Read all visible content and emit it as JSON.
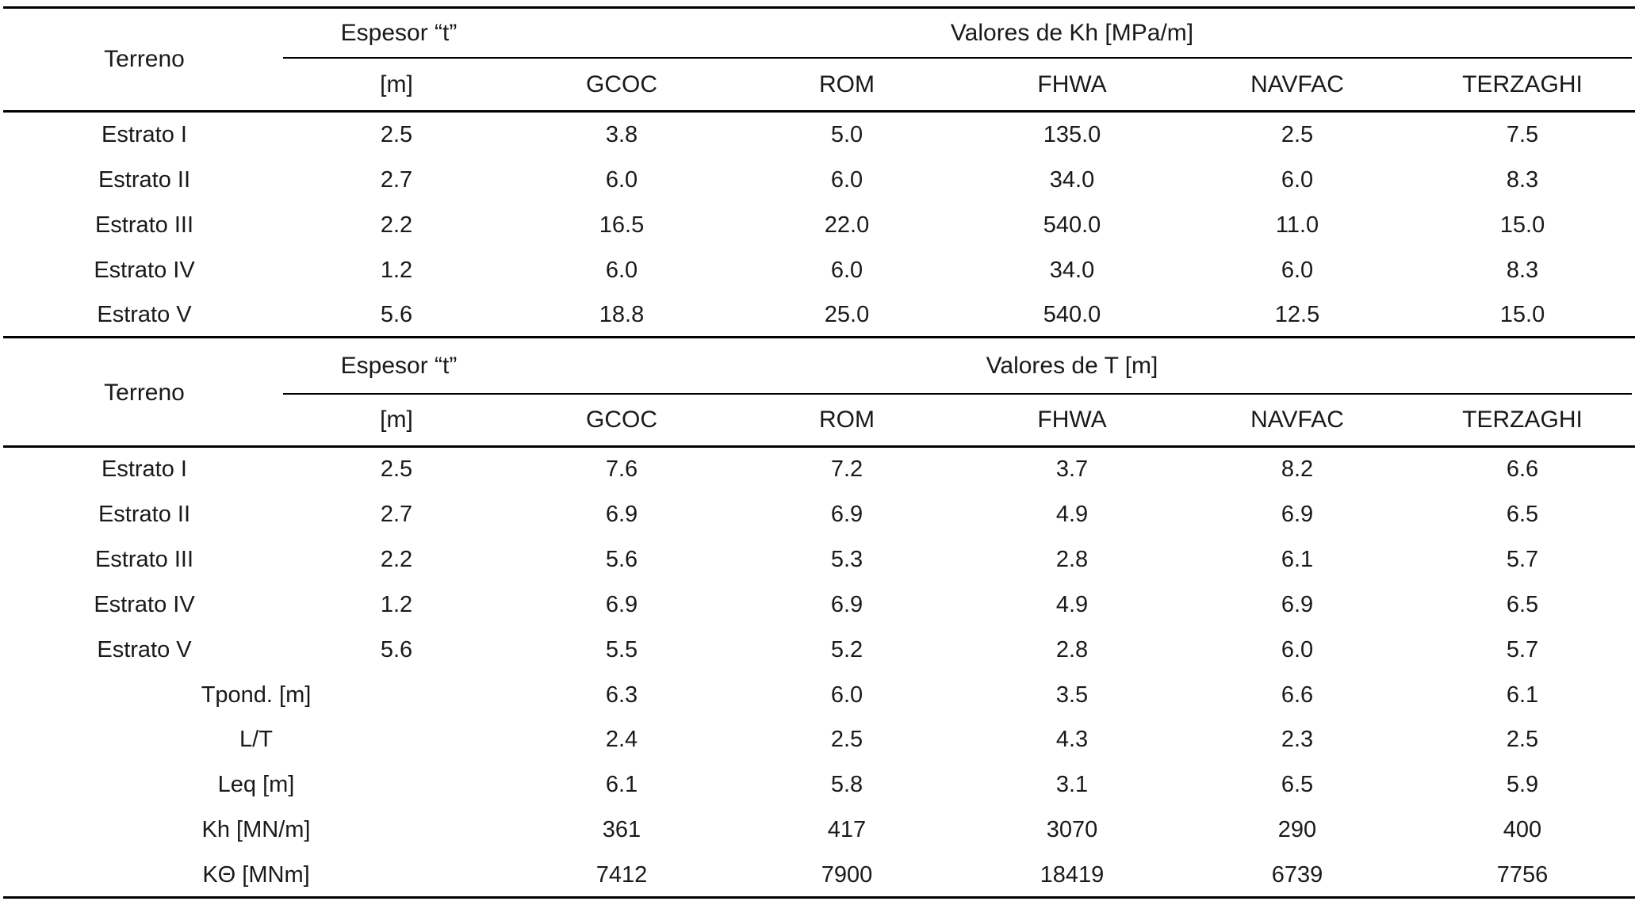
{
  "tables": [
    {
      "terrain_label": "Terreno",
      "thickness_label": "Espesor “t”",
      "thickness_unit": "[m]",
      "group_label": "Valores de Kh [MPa/m]",
      "methods": [
        "GCOC",
        "ROM",
        "FHWA",
        "NAVFAC",
        "TERZAGHI"
      ],
      "rows": [
        {
          "label": "Estrato I",
          "t": "2.5",
          "values": [
            "3.8",
            "5.0",
            "135.0",
            "2.5",
            "7.5"
          ]
        },
        {
          "label": "Estrato II",
          "t": "2.7",
          "values": [
            "6.0",
            "6.0",
            "34.0",
            "6.0",
            "8.3"
          ]
        },
        {
          "label": "Estrato III",
          "t": "2.2",
          "values": [
            "16.5",
            "22.0",
            "540.0",
            "11.0",
            "15.0"
          ]
        },
        {
          "label": "Estrato IV",
          "t": "1.2",
          "values": [
            "6.0",
            "6.0",
            "34.0",
            "6.0",
            "8.3"
          ]
        },
        {
          "label": "Estrato V",
          "t": "5.6",
          "values": [
            "18.8",
            "25.0",
            "540.0",
            "12.5",
            "15.0"
          ]
        }
      ],
      "summary_rows": []
    },
    {
      "terrain_label": "Terreno",
      "thickness_label": "Espesor “t”",
      "thickness_unit": "[m]",
      "group_label": "Valores de T [m]",
      "methods": [
        "GCOC",
        "ROM",
        "FHWA",
        "NAVFAC",
        "TERZAGHI"
      ],
      "rows": [
        {
          "label": "Estrato I",
          "t": "2.5",
          "values": [
            "7.6",
            "7.2",
            "3.7",
            "8.2",
            "6.6"
          ]
        },
        {
          "label": "Estrato II",
          "t": "2.7",
          "values": [
            "6.9",
            "6.9",
            "4.9",
            "6.9",
            "6.5"
          ]
        },
        {
          "label": "Estrato III",
          "t": "2.2",
          "values": [
            "5.6",
            "5.3",
            "2.8",
            "6.1",
            "5.7"
          ]
        },
        {
          "label": "Estrato IV",
          "t": "1.2",
          "values": [
            "6.9",
            "6.9",
            "4.9",
            "6.9",
            "6.5"
          ]
        },
        {
          "label": "Estrato V",
          "t": "5.6",
          "values": [
            "5.5",
            "5.2",
            "2.8",
            "6.0",
            "5.7"
          ]
        }
      ],
      "summary_rows": [
        {
          "label": "Tpond. [m]",
          "values": [
            "6.3",
            "6.0",
            "3.5",
            "6.6",
            "6.1"
          ]
        },
        {
          "label": "L/T",
          "values": [
            "2.4",
            "2.5",
            "4.3",
            "2.3",
            "2.5"
          ]
        },
        {
          "label": "Leq [m]",
          "values": [
            "6.1",
            "5.8",
            "3.1",
            "6.5",
            "5.9"
          ]
        },
        {
          "label": "Kh [MN/m]",
          "values": [
            "361",
            "417",
            "3070",
            "290",
            "400"
          ]
        },
        {
          "label": "KΘ [MNm]",
          "values": [
            "7412",
            "7900",
            "18419",
            "6739",
            "7756"
          ]
        }
      ]
    }
  ]
}
